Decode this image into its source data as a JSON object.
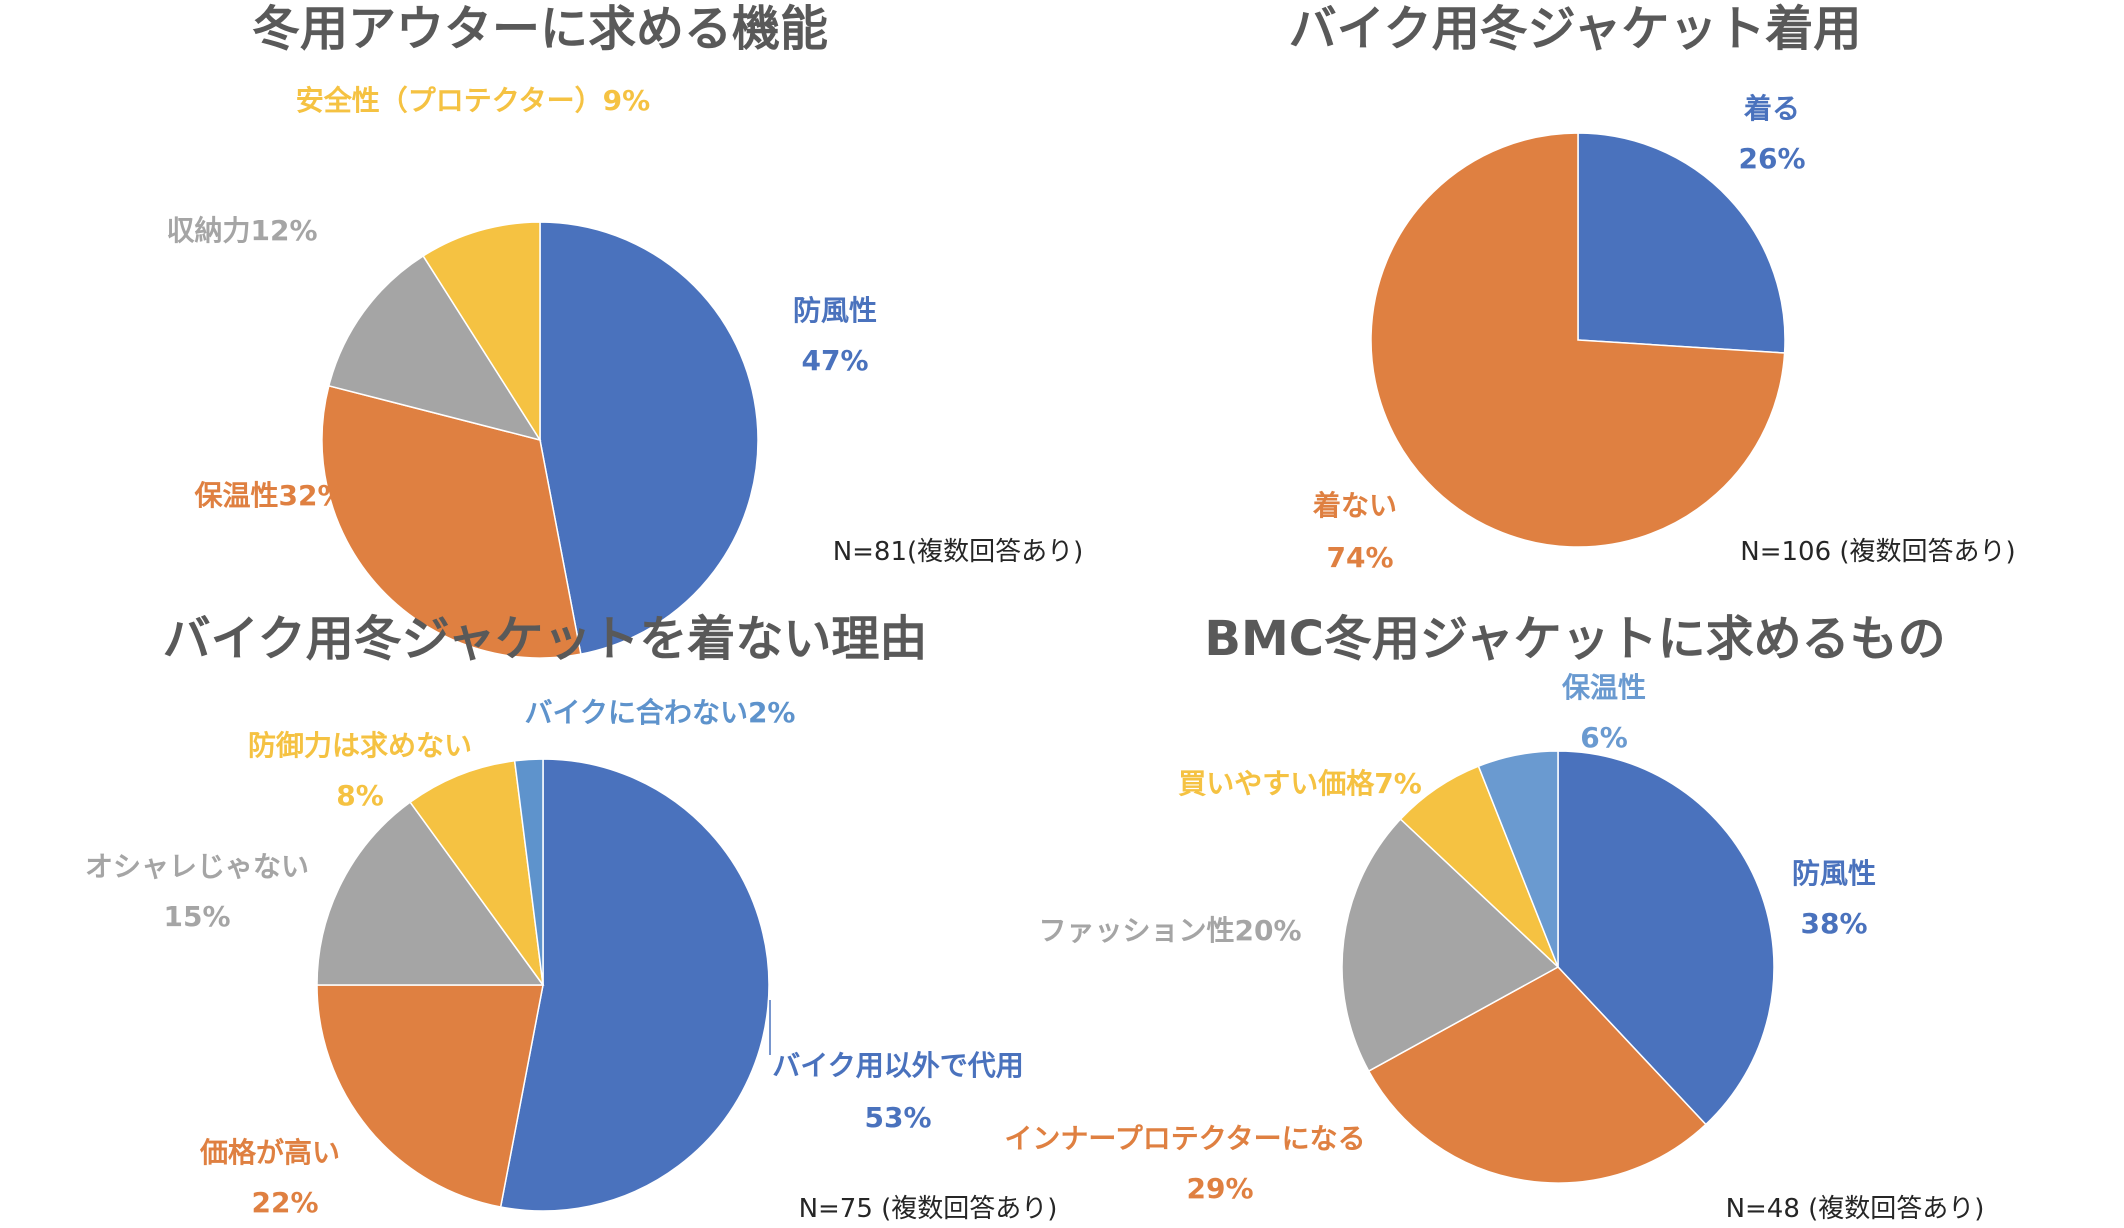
{
  "chart_data": [
    {
      "type": "pie",
      "title": "冬用アウターに求める機能",
      "note": "N=81(複数回答あり)",
      "slices": [
        {
          "label": "防風性",
          "pct": "47%",
          "value": 47,
          "color": "#4a72bd"
        },
        {
          "label": "保温性32%",
          "pct": "",
          "value": 32,
          "color": "#df8041"
        },
        {
          "label": "収納力12%",
          "pct": "",
          "value": 12,
          "color": "#a5a5a5"
        },
        {
          "label": "安全性（プロテクター）9%",
          "pct": "",
          "value": 9,
          "color": "#f5c242"
        }
      ]
    },
    {
      "type": "pie",
      "title": "バイク用冬ジャケット着用",
      "note": "N=106 (複数回答あり)",
      "slices": [
        {
          "label": "着る",
          "pct": "26%",
          "value": 26,
          "color": "#4a72bd"
        },
        {
          "label": "着ない",
          "pct": "74%",
          "value": 74,
          "color": "#df8041"
        }
      ]
    },
    {
      "type": "pie",
      "title": "バイク用冬ジャケットを着ない理由",
      "note": "N=75 (複数回答あり)",
      "slices": [
        {
          "label": "バイク用以外で代用",
          "pct": "53%",
          "value": 53,
          "color": "#4a72bd"
        },
        {
          "label": "価格が高い",
          "pct": "22%",
          "value": 22,
          "color": "#df8041"
        },
        {
          "label": "オシャレじゃない",
          "pct": "15%",
          "value": 15,
          "color": "#a5a5a5"
        },
        {
          "label": "防御力は求めない",
          "pct": "8%",
          "value": 8,
          "color": "#f5c242"
        },
        {
          "label": "バイクに合わない2%",
          "pct": "",
          "value": 2,
          "color": "#5e93cc"
        }
      ]
    },
    {
      "type": "pie",
      "title": "BMC冬用ジャケットに求めるもの",
      "note": "N=48 (複数回答あり)",
      "slices": [
        {
          "label": "防風性",
          "pct": "38%",
          "value": 38,
          "color": "#4a72bd"
        },
        {
          "label": "インナープロテクターになる",
          "pct": "29%",
          "value": 29,
          "color": "#df8041"
        },
        {
          "label": "ファッション性20%",
          "pct": "",
          "value": 20,
          "color": "#a5a5a5"
        },
        {
          "label": "買いやすい価格7%",
          "pct": "",
          "value": 7,
          "color": "#f5c242"
        },
        {
          "label": "保温性",
          "pct": "6%",
          "value": 6,
          "color": "#6a9ad0"
        }
      ]
    }
  ]
}
